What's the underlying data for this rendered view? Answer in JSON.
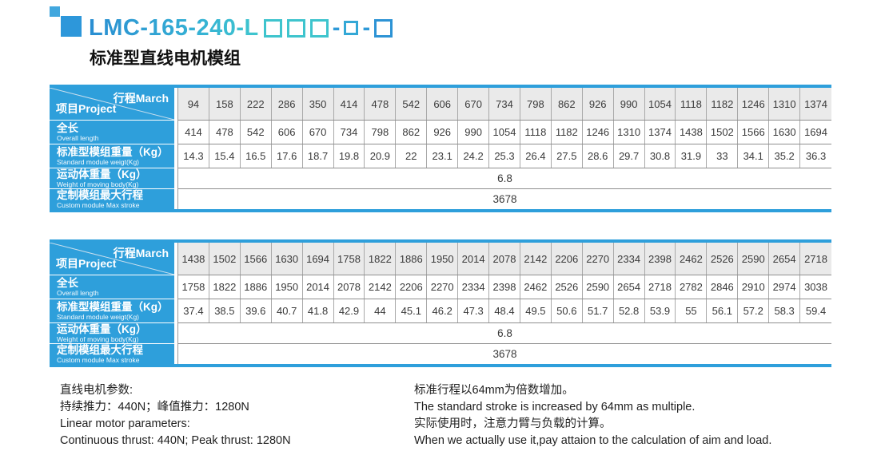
{
  "header": {
    "model": "LMC-165-240-L",
    "model_pattern": "□□□-□-□",
    "subtitle": "标准型直线电机模组"
  },
  "colors": {
    "accent_blue": "#2e9fdb",
    "accent_cyan": "#3ec4cd",
    "header_gray": "#eaeaea"
  },
  "tables": [
    {
      "corner": {
        "top": "行程March",
        "bottom": "项目Project"
      },
      "row_labels": [
        {
          "zh": "全长",
          "en": "Overall length"
        },
        {
          "zh": "标准型模组重量（Kg）",
          "en": "Standard module weigt(Kg)"
        },
        {
          "zh": "运动体重量（Kg）",
          "en": "Weight of moving body(Kg)"
        },
        {
          "zh": "定制模组最大行程",
          "en": "Custom module Max stroke"
        }
      ],
      "stroke": [
        "94",
        "158",
        "222",
        "286",
        "350",
        "414",
        "478",
        "542",
        "606",
        "670",
        "734",
        "798",
        "862",
        "926",
        "990",
        "1054",
        "1118",
        "1182",
        "1246",
        "1310",
        "1374"
      ],
      "overall_length": [
        "414",
        "478",
        "542",
        "606",
        "670",
        "734",
        "798",
        "862",
        "926",
        "990",
        "1054",
        "1118",
        "1182",
        "1246",
        "1310",
        "1374",
        "1438",
        "1502",
        "1566",
        "1630",
        "1694"
      ],
      "module_weight": [
        "14.3",
        "15.4",
        "16.5",
        "17.6",
        "18.7",
        "19.8",
        "20.9",
        "22",
        "23.1",
        "24.2",
        "25.3",
        "26.4",
        "27.5",
        "28.6",
        "29.7",
        "30.8",
        "31.9",
        "33",
        "34.1",
        "35.2",
        "36.3"
      ],
      "moving_body_weight": "6.8",
      "custom_max_stroke": "3678"
    },
    {
      "corner": {
        "top": "行程March",
        "bottom": "项目Project"
      },
      "row_labels": [
        {
          "zh": "全长",
          "en": "Overall length"
        },
        {
          "zh": "标准型模组重量（Kg）",
          "en": "Standard module weigt(Kg)"
        },
        {
          "zh": "运动体重量（Kg）",
          "en": "Weight of moving body(Kg)"
        },
        {
          "zh": "定制模组最大行程",
          "en": "Custom module Max stroke"
        }
      ],
      "stroke": [
        "1438",
        "1502",
        "1566",
        "1630",
        "1694",
        "1758",
        "1822",
        "1886",
        "1950",
        "2014",
        "2078",
        "2142",
        "2206",
        "2270",
        "2334",
        "2398",
        "2462",
        "2526",
        "2590",
        "2654",
        "2718"
      ],
      "overall_length": [
        "1758",
        "1822",
        "1886",
        "1950",
        "2014",
        "2078",
        "2142",
        "2206",
        "2270",
        "2334",
        "2398",
        "2462",
        "2526",
        "2590",
        "2654",
        "2718",
        "2782",
        "2846",
        "2910",
        "2974",
        "3038"
      ],
      "module_weight": [
        "37.4",
        "38.5",
        "39.6",
        "40.7",
        "41.8",
        "42.9",
        "44",
        "45.1",
        "46.2",
        "47.3",
        "48.4",
        "49.5",
        "50.6",
        "51.7",
        "52.8",
        "53.9",
        "55",
        "56.1",
        "57.2",
        "58.3",
        "59.4"
      ],
      "moving_body_weight": "6.8",
      "custom_max_stroke": "3678"
    }
  ],
  "footer": {
    "left": [
      "直线电机参数:",
      "持续推力：440N；峰值推力：1280N",
      "Linear motor parameters:",
      "Continuous thrust: 440N;  Peak thrust: 1280N"
    ],
    "right": [
      "标准行程以64mm为倍数增加。",
      "The standard stroke is increased by 64mm as multiple.",
      "实际使用时，注意力臂与负载的计算。",
      "When we actually use it,pay attaion to the calculation of aim and load."
    ]
  }
}
